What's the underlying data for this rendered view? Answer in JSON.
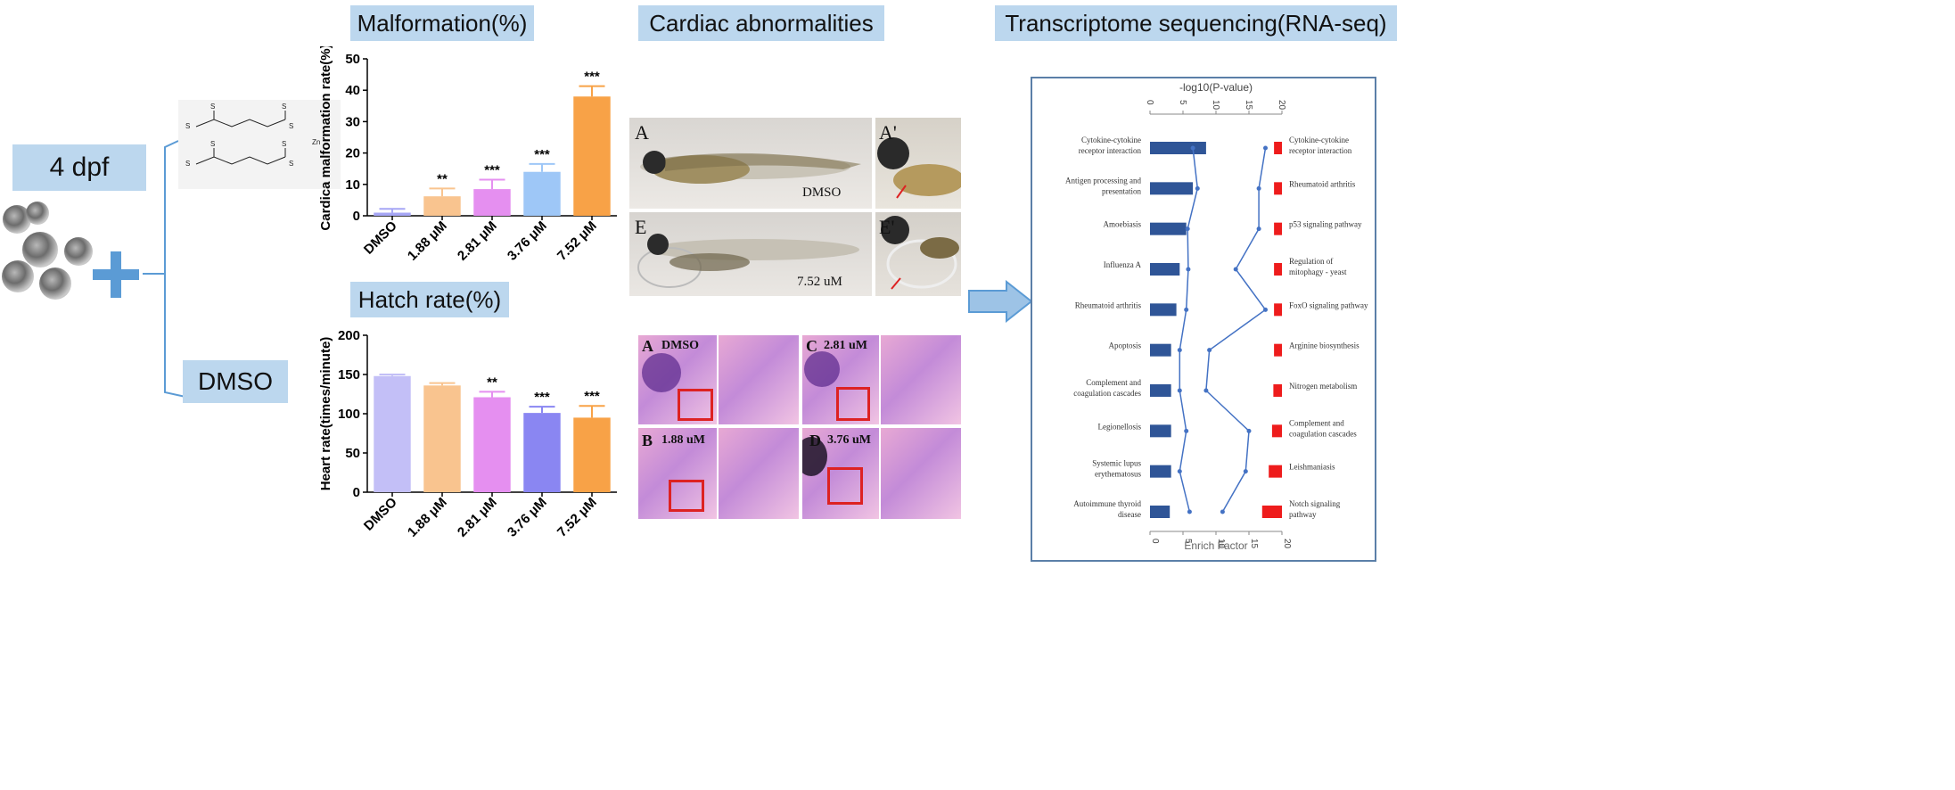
{
  "left": {
    "stage_label": "4 dpf",
    "control_label": "DMSO"
  },
  "sections": {
    "malformation_title": "Malformation(%)",
    "hatch_title": "Hatch rate(%)",
    "cardiac_title": "Cardiac abnormalities",
    "rnaseq_title": "Transcriptome sequencing(RNA-seq)"
  },
  "colors": {
    "label_box": "#bcd7ee",
    "plus": "#5b9bd5",
    "arrow": "#9dc3e6"
  },
  "chart_data": [
    {
      "type": "bar",
      "ylabel": "Cardica malformation rate(%)",
      "categories": [
        "DMSO",
        "1.88 μM",
        "2.81 μM",
        "3.76 μM",
        "7.52 μM"
      ],
      "values": [
        1,
        6.2,
        8.5,
        14,
        38
      ],
      "errors": [
        1.2,
        2.5,
        3,
        2.5,
        3.3
      ],
      "significance": [
        "",
        "**",
        "***",
        "***",
        "***"
      ],
      "colors": [
        "#a6a6f5",
        "#f9c48f",
        "#e58ff0",
        "#9ec7f7",
        "#f8a247"
      ],
      "ylim": [
        0,
        50
      ],
      "yticks": [
        0,
        10,
        20,
        30,
        40,
        50
      ]
    },
    {
      "type": "bar",
      "ylabel": "Heart rate(times/minute)",
      "categories": [
        "DMSO",
        "1.88 μM",
        "2.81 μM",
        "3.76 μM",
        "7.52 μM"
      ],
      "values": [
        148,
        136,
        121,
        101,
        95
      ],
      "errors": [
        2,
        3,
        7,
        8,
        15
      ],
      "significance": [
        "",
        "",
        "**",
        "***",
        "***"
      ],
      "colors": [
        "#c3bff7",
        "#f9c48f",
        "#e58ff0",
        "#8a86f2",
        "#f8a247"
      ],
      "ylim": [
        0,
        200
      ],
      "yticks": [
        0,
        50,
        100,
        150,
        200
      ]
    },
    {
      "type": "bar",
      "title": "-log10(P-value)",
      "xlabel": "Enrich Factor",
      "top_axis_ticks": [
        "0",
        "5",
        "10",
        "15",
        "20"
      ],
      "bottom_axis_ticks": [
        "0",
        "5",
        "10",
        "15",
        "20"
      ],
      "left_terms": [
        "Cytokine-cytokine receptor interaction",
        "Antigen processing and presentation",
        "Amoebiasis",
        "Influenza A",
        "Rheumatoid arthritis",
        "Apoptosis",
        "Complement and coagulation cascades",
        "Legionellosis",
        "Systemic lupus erythematosus",
        "Autoimmune thyroid disease"
      ],
      "right_terms": [
        "Cytokine-cytokine receptor interaction",
        "Rheumatoid arthritis",
        "p53 signaling pathway",
        "Regulation of mitophagy - yeast",
        "FoxO signaling pathway",
        "Arginine biosynthesis",
        "Nitrogen metabolism",
        "Complement and coagulation cascades",
        "Leishmaniasis",
        "Notch signaling pathway"
      ],
      "left_bar_values": [
        8.5,
        6.5,
        5.5,
        4.5,
        4,
        3.2,
        3.2,
        3.2,
        3.2,
        3
      ],
      "right_bar_values": [
        1.2,
        1.2,
        1.2,
        1.2,
        1.2,
        1.2,
        1.3,
        1.5,
        2,
        3
      ],
      "left_line_values": [
        6.5,
        7.2,
        5.7,
        5.8,
        5.5,
        4.5,
        4.5,
        5.5,
        4.5,
        6
      ],
      "right_line_values": [
        17.5,
        16.5,
        16.5,
        13,
        17.5,
        9,
        8.5,
        15,
        14.5,
        11
      ]
    }
  ],
  "cardiac": {
    "panel_A": "A",
    "panel_A_prime": "A'",
    "panel_E": "E",
    "panel_E_prime": "E'",
    "dmso_label": "DMSO",
    "dose_label": "7.52 uM",
    "histo_A": "A",
    "histo_A_text": "DMSO",
    "histo_C": "C",
    "histo_C_text": "2.81 uM",
    "histo_B": "B",
    "histo_B_text": "1.88 uM",
    "histo_D": "D",
    "histo_D_text": "3.76 uM"
  }
}
